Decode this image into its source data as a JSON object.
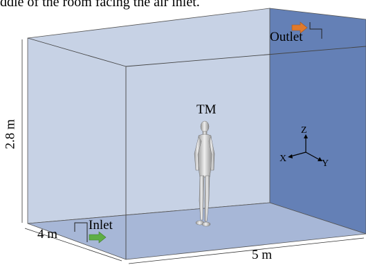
{
  "caption": "ddle of the room facing the air inlet.",
  "labels": {
    "height": "2.8 m",
    "depth": "4 m",
    "width": "5 m",
    "manikin": "TM",
    "inlet": "Inlet",
    "outlet": "Outlet"
  },
  "axes": {
    "z": "Z",
    "x": "X",
    "y": "Y"
  },
  "colors": {
    "back_wall": "#c7d2e5",
    "side_wall": "#6480b6",
    "floor": "#a7b7d7",
    "inlet_arrow": "#5fae45",
    "outlet_arrow": "#e07a2c"
  }
}
